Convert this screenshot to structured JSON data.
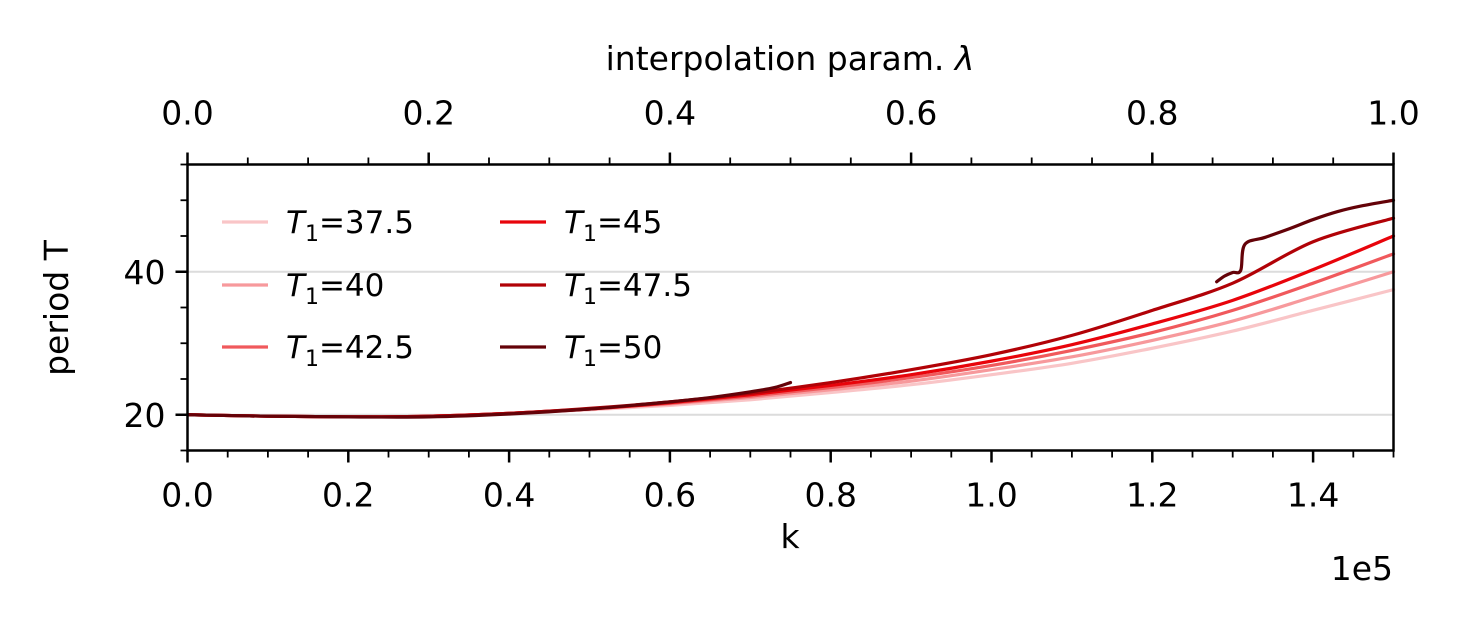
{
  "chart_data": {
    "type": "line",
    "title": "",
    "xlabel": "k",
    "x_multiplier_label": "1e5",
    "x2label_text": "interpolation param. ",
    "x2label_symbol": "λ",
    "ylabel": "period T",
    "xlim": [
      0,
      150000
    ],
    "x2lim": [
      0,
      1
    ],
    "ylim": [
      15,
      55
    ],
    "x_ticks": [
      0,
      20000,
      40000,
      60000,
      80000,
      100000,
      120000,
      140000
    ],
    "x_tick_labels": [
      "0.0",
      "0.2",
      "0.4",
      "0.6",
      "0.8",
      "1.0",
      "1.2",
      "1.4"
    ],
    "x2_ticks": [
      0,
      0.2,
      0.4,
      0.6,
      0.8,
      1.0
    ],
    "x2_tick_labels": [
      "0.0",
      "0.2",
      "0.4",
      "0.6",
      "0.8",
      "1.0"
    ],
    "y_ticks": [
      20,
      40
    ],
    "y_tick_labels": [
      "20",
      "40"
    ],
    "y_gridlines": [
      20,
      40
    ],
    "grid": "horizontal at major y ticks",
    "legend_position": "upper-left, 2 columns",
    "legend_prefix": "T",
    "legend_subscript": "1",
    "series": [
      {
        "name": "37.5",
        "color": "#f9c5c7",
        "x": [
          0,
          10000,
          20000,
          30000,
          40000,
          50000,
          60000,
          70000,
          80000,
          90000,
          100000,
          110000,
          120000,
          130000,
          140000,
          150000
        ],
        "y": [
          20.0,
          19.8,
          19.7,
          19.8,
          20.2,
          20.7,
          21.3,
          22.1,
          23.1,
          24.2,
          25.6,
          27.2,
          29.3,
          31.7,
          34.6,
          37.5
        ]
      },
      {
        "name": "40",
        "color": "#f7999c",
        "x": [
          0,
          10000,
          20000,
          30000,
          40000,
          50000,
          60000,
          70000,
          80000,
          90000,
          100000,
          110000,
          120000,
          130000,
          140000,
          150000
        ],
        "y": [
          20.0,
          19.8,
          19.7,
          19.8,
          20.2,
          20.8,
          21.5,
          22.4,
          23.5,
          24.7,
          26.3,
          28.1,
          30.4,
          33.1,
          36.5,
          40.0
        ]
      },
      {
        "name": "42.5",
        "color": "#f0595c",
        "x": [
          0,
          10000,
          20000,
          30000,
          40000,
          50000,
          60000,
          70000,
          80000,
          90000,
          100000,
          110000,
          120000,
          130000,
          140000,
          150000
        ],
        "y": [
          20.0,
          19.8,
          19.7,
          19.8,
          20.2,
          20.8,
          21.6,
          22.6,
          23.8,
          25.2,
          26.9,
          29.0,
          31.5,
          34.6,
          38.4,
          42.5
        ]
      },
      {
        "name": "45",
        "color": "#e8040b",
        "x": [
          0,
          10000,
          20000,
          30000,
          40000,
          50000,
          60000,
          70000,
          80000,
          90000,
          100000,
          110000,
          120000,
          130000,
          140000,
          150000
        ],
        "y": [
          20.0,
          19.8,
          19.7,
          19.8,
          20.2,
          20.8,
          21.7,
          22.8,
          24.1,
          25.6,
          27.5,
          29.8,
          32.7,
          36.0,
          40.3,
          45.0
        ]
      },
      {
        "name": "47.5",
        "color": "#b10207",
        "x": [
          0,
          10000,
          20000,
          30000,
          40000,
          50000,
          60000,
          70000,
          80000,
          90000,
          100000,
          110000,
          120000,
          130000,
          140000,
          150000
        ],
        "y": [
          20.0,
          19.8,
          19.7,
          19.8,
          20.2,
          20.9,
          21.8,
          23.0,
          24.5,
          26.3,
          28.4,
          31.1,
          34.6,
          38.4,
          44.2,
          47.5
        ]
      },
      {
        "name": "50",
        "color": "#640208",
        "segments": [
          {
            "x": [
              0,
              10000,
              20000,
              30000,
              40000,
              50000,
              60000,
              65000,
              70000,
              73000,
              75000
            ],
            "y": [
              20.0,
              19.8,
              19.7,
              19.7,
              20.1,
              20.8,
              21.8,
              22.4,
              23.2,
              23.8,
              24.5
            ]
          },
          {
            "x": [
              128000,
              129000,
              130000,
              131000,
              131500,
              134000,
              137000,
              140000,
              143000,
              146000,
              150000
            ],
            "y": [
              38.6,
              39.4,
              39.9,
              40.2,
              43.8,
              44.8,
              46.0,
              47.3,
              48.4,
              49.2,
              50.0
            ]
          }
        ]
      }
    ]
  }
}
